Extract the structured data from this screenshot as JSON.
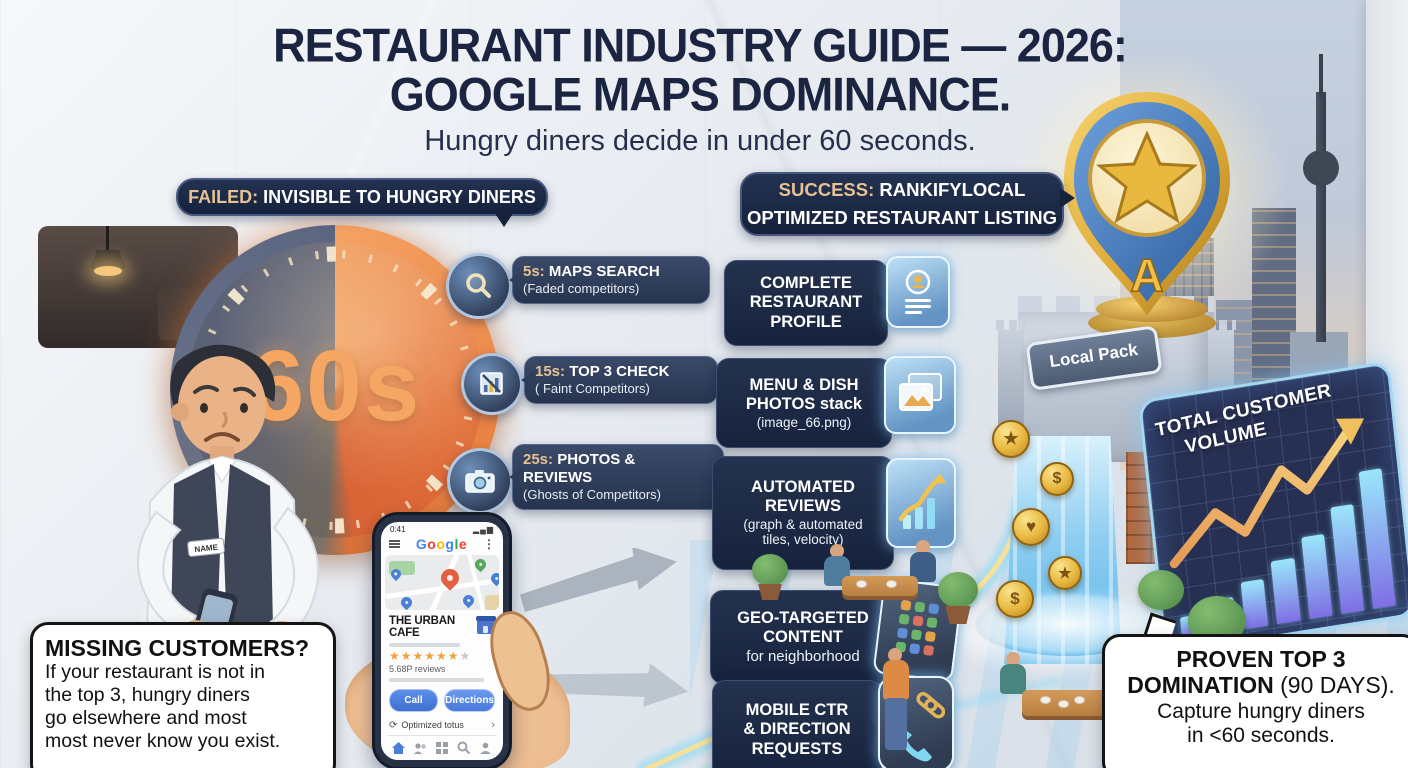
{
  "title": {
    "line1": "RESTAURANT INDUSTRY GUIDE — 2026:",
    "line2": "GOOGLE MAPS DOMINANCE.",
    "subtitle": "Hungry diners decide in under 60 seconds."
  },
  "banners": {
    "failed_prefix": "FAILED:",
    "failed_text": " INVISIBLE TO HUNGRY DINERS",
    "success_prefix": "SUCCESS:",
    "success_text1": " RANKIFYLOCAL",
    "success_text2": "OPTIMIZED RESTAURANT LISTING"
  },
  "timer": {
    "label": "60s"
  },
  "timeline": [
    {
      "time": "5s:",
      "title": " MAPS SEARCH",
      "subtitle": "(Faded competitors)",
      "icon": "search-icon"
    },
    {
      "time": "15s:",
      "title": " TOP 3 CHECK",
      "subtitle": "( Faint Competitors)",
      "icon": "bar-chart-icon"
    },
    {
      "time": "25s:",
      "title": " PHOTOS &",
      "title2": "REVIEWS",
      "subtitle": "(Ghosts of Competitors)",
      "icon": "camera-icon"
    }
  ],
  "features": [
    {
      "line1": "COMPLETE",
      "line2": "RESTAURANT",
      "line3": "PROFILE",
      "icon": "profile-card-icon"
    },
    {
      "line1": "MENU & DISH",
      "line2": "PHOTOS stack",
      "note": "(image_66.png)",
      "icon": "photos-stack-icon"
    },
    {
      "line1": "AUTOMATED",
      "line2": "REVIEWS",
      "note1": "(graph & automated",
      "note2": "tiles, velocity)",
      "icon": "growth-chart-icon"
    },
    {
      "line1": "GEO-TARGETED",
      "line2": "CONTENT",
      "note": "for neighborhood",
      "icon": "app-grid-icon"
    },
    {
      "line1": "MOBILE CTR",
      "line2": "& DIRECTION",
      "line3": "REQUESTS",
      "icon": "phone-call-icon"
    }
  ],
  "phone": {
    "status_time": "0:41",
    "signal_icons": "▂▄▆",
    "logo": "Google",
    "logo_colors": [
      "#4285F4",
      "#EA4335",
      "#FBBC05",
      "#4285F4",
      "#34A853",
      "#EA4335"
    ],
    "more_icon": "⋮",
    "business_name": "THE URBAN CAFE",
    "stars_gold": "★★★★★★",
    "star_faded": "★",
    "reviews_text": "5.68P reviews",
    "call_label": "Call",
    "directions_label": "Directions",
    "refresh_icon": "⟳",
    "optimized_label": "Optimized totus",
    "chevron": "›"
  },
  "pin": {
    "letter": "A"
  },
  "local_pack": "Local Pack",
  "volume_panel": {
    "title1": "TOTAL CUSTOMER",
    "title2": "VOLUME"
  },
  "coins": {
    "glyph1": "★",
    "glyph2": "$",
    "glyph3": "♥",
    "glyph4": "★",
    "glyph5": "$"
  },
  "bubbles": {
    "missing": {
      "heading": "MISSING CUSTOMERS?",
      "line1": "If your restaurant is not in",
      "line2": "the top 3, hungry diners",
      "line3": "go elsewhere and most",
      "line4": "most never know you exist."
    },
    "proven": {
      "bold1": "PROVEN TOP 3",
      "bold2": "DOMINATION",
      "normal2": " (90 DAYS).",
      "line3": "Capture hungry diners",
      "line4": "in <60 seconds."
    }
  },
  "waiter": {
    "name_tag": "NAME"
  },
  "colors": {
    "navy_banner": "#1d2941",
    "tan_accent": "#e6c193",
    "timer_orange": "#e8793d",
    "glass_blue": "#7fb3d8",
    "gold": "#e8b83f",
    "waterfall_blue": "#58b7ea"
  },
  "chart_data": {
    "type": "bar",
    "title": "TOTAL CUSTOMER VOLUME",
    "values": [
      14,
      22,
      30,
      40,
      52,
      68,
      88
    ],
    "ylim": [
      0,
      100
    ],
    "trend": "rising",
    "annotation": "golden upward zigzag arrow over bars",
    "grid": true
  }
}
